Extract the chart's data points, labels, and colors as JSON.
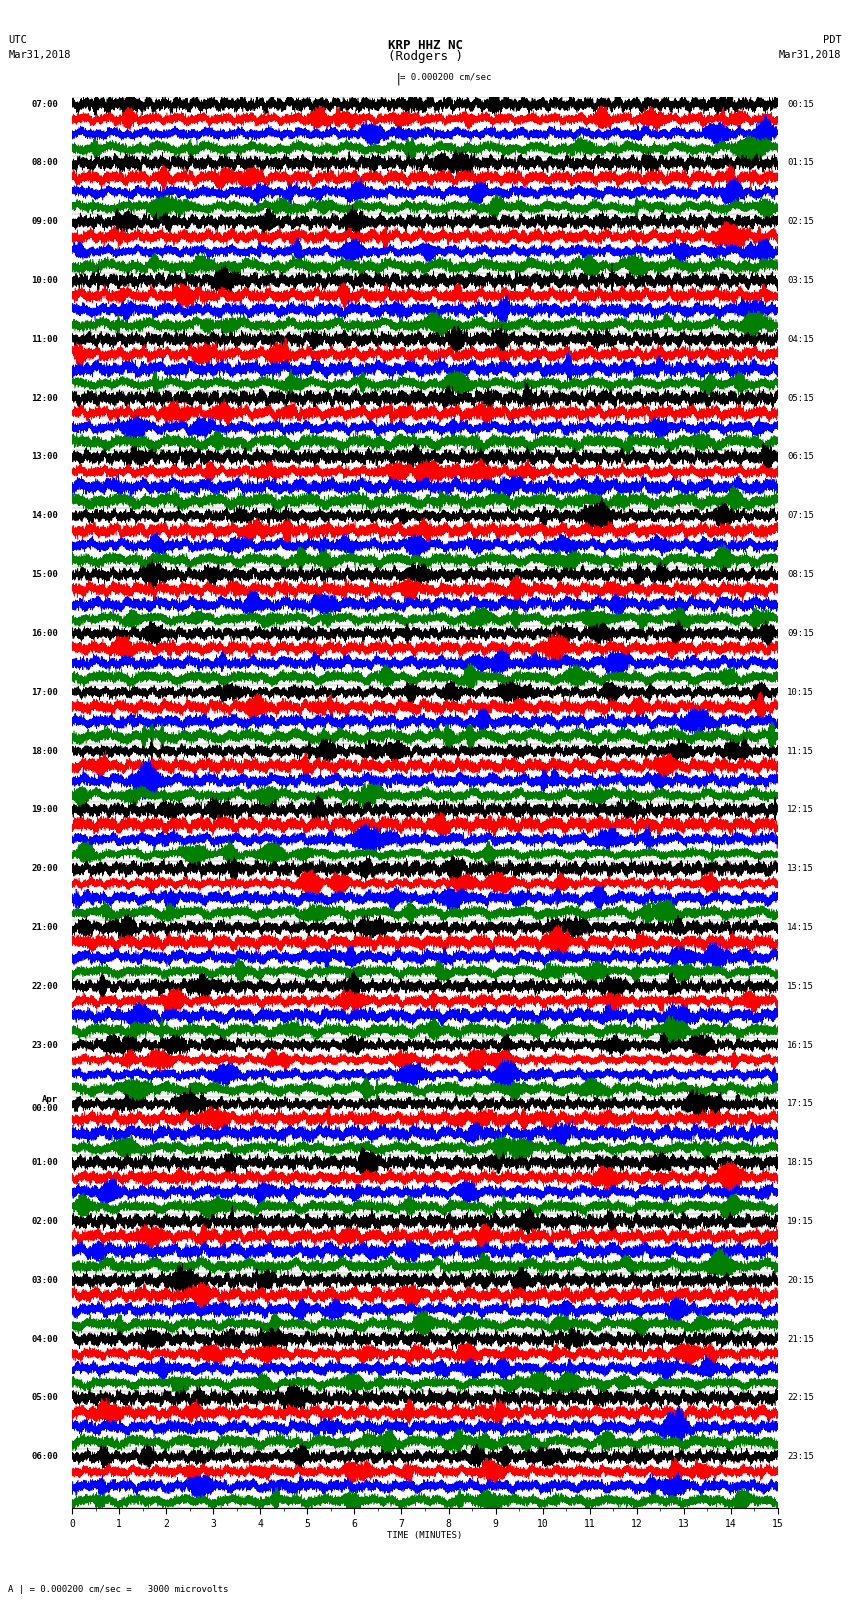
{
  "title_line1": "KRP HHZ NC",
  "title_line2": "(Rodgers )",
  "scale_label": "= 0.000200 cm/sec",
  "footer_label": "= 0.000200 cm/sec =   3000 microvolts",
  "utc_label": "UTC",
  "pdt_label": "PDT",
  "date_left": "Mar31,2018",
  "date_right": "Mar31,2018",
  "xlabel": "TIME (MINUTES)",
  "colors": [
    "black",
    "red",
    "blue",
    "green"
  ],
  "hour_labels_left": [
    "07:00",
    "08:00",
    "09:00",
    "10:00",
    "11:00",
    "12:00",
    "13:00",
    "14:00",
    "15:00",
    "16:00",
    "17:00",
    "18:00",
    "19:00",
    "20:00",
    "21:00",
    "22:00",
    "23:00",
    "Apr\n00:00",
    "01:00",
    "02:00",
    "03:00",
    "04:00",
    "05:00",
    "06:00"
  ],
  "hour_labels_right": [
    "00:15",
    "01:15",
    "02:15",
    "03:15",
    "04:15",
    "05:15",
    "06:15",
    "07:15",
    "08:15",
    "09:15",
    "10:15",
    "11:15",
    "12:15",
    "13:15",
    "14:15",
    "15:15",
    "16:15",
    "17:15",
    "18:15",
    "19:15",
    "20:15",
    "21:15",
    "22:15",
    "23:15"
  ],
  "num_hours": 24,
  "traces_per_hour": 4,
  "minutes": 15,
  "sample_rate": 50,
  "noise_seed": 42,
  "background_color": "white",
  "fontsize_title": 9,
  "fontsize_labels": 6.5,
  "fontsize_ticks": 7,
  "fontsize_header": 7.5
}
